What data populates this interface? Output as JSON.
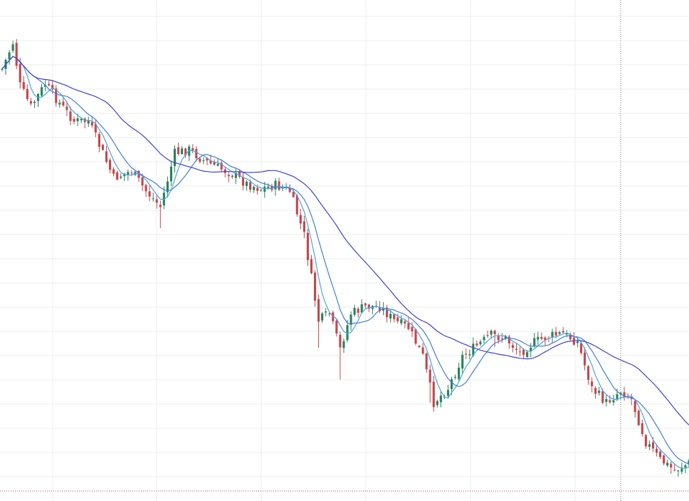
{
  "colors": {
    "background": "#ffffff",
    "grid": "#eeeeee",
    "up": "#26845a",
    "down": "#c4474b",
    "ma_fast": "#4aa3e8",
    "ma_mid": "#3f7de0",
    "ma_slow": "#3f3fd6",
    "crosshair": "#777777"
  },
  "chart_data": {
    "type": "candlestick",
    "title": "",
    "xlabel": "",
    "ylabel": "",
    "ylim": [
      0,
      703
    ],
    "grid": true,
    "legend": "none",
    "crosshair": {
      "bar_index": 0,
      "value": 0
    },
    "candles": [],
    "series": []
  }
}
